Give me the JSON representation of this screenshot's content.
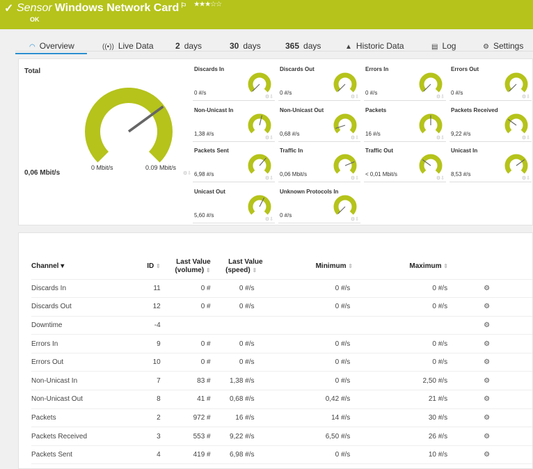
{
  "header": {
    "prefix": "Sensor",
    "title": "Windows Network Card",
    "rating": "★★★☆☆",
    "status": "OK",
    "color": "#b5c31b"
  },
  "tabs": [
    {
      "label": "Overview",
      "icon": "gauge-icon"
    },
    {
      "label": "Live Data",
      "icon": "broadcast-icon"
    },
    {
      "num": "2",
      "label": "days"
    },
    {
      "num": "30",
      "label": "days"
    },
    {
      "num": "365",
      "label": "days"
    },
    {
      "label": "Historic Data",
      "icon": "chart-icon"
    },
    {
      "label": "Log",
      "icon": "log-icon"
    },
    {
      "label": "Settings",
      "icon": "gear-icon"
    }
  ],
  "total": {
    "label": "Total",
    "value": "0,06 Mbit/s",
    "min": "0 Mbit/s",
    "max": "0.09 Mbit/s",
    "gauge_level": 0.7
  },
  "gauges": [
    {
      "name": "Discards In",
      "value": "0 #/s",
      "gauge_level": 0
    },
    {
      "name": "Discards Out",
      "value": "0 #/s",
      "gauge_level": 0
    },
    {
      "name": "Errors In",
      "value": "0 #/s",
      "gauge_level": 0
    },
    {
      "name": "Errors Out",
      "value": "0 #/s",
      "gauge_level": 0
    },
    {
      "name": "Non-Unicast In",
      "value": "1,38 #/s",
      "gauge_level": 0.55
    },
    {
      "name": "Non-Unicast Out",
      "value": "0,68 #/s",
      "gauge_level": 0.1
    },
    {
      "name": "Packets",
      "value": "16 #/s",
      "gauge_level": 0.5
    },
    {
      "name": "Packets Received",
      "value": "9,22 #/s",
      "gauge_level": 0.3
    },
    {
      "name": "Packets Sent",
      "value": "6,98 #/s",
      "gauge_level": 0.65
    },
    {
      "name": "Traffic In",
      "value": "0,06 Mbit/s",
      "gauge_level": 0.75
    },
    {
      "name": "Traffic Out",
      "value": "< 0,01 Mbit/s",
      "gauge_level": 0.3
    },
    {
      "name": "Unicast In",
      "value": "8,53 #/s",
      "gauge_level": 0.7
    },
    {
      "name": "Unicast Out",
      "value": "5,60 #/s",
      "gauge_level": 0.6
    },
    {
      "name": "Unknown Protocols In",
      "value": "0 #/s",
      "gauge_level": 0
    }
  ],
  "table": {
    "headers": {
      "channel": "Channel",
      "id": "ID",
      "vol": "Last Value",
      "vol2": "(volume)",
      "spd": "Last Value",
      "spd2": "(speed)",
      "min": "Minimum",
      "max": "Maximum"
    },
    "rows": [
      [
        "Discards In",
        "11",
        "0 #",
        "0 #/s",
        "0 #/s",
        "0 #/s"
      ],
      [
        "Discards Out",
        "12",
        "0 #",
        "0 #/s",
        "0 #/s",
        "0 #/s"
      ],
      [
        "Downtime",
        "-4",
        "",
        "",
        "",
        ""
      ],
      [
        "Errors In",
        "9",
        "0 #",
        "0 #/s",
        "0 #/s",
        "0 #/s"
      ],
      [
        "Errors Out",
        "10",
        "0 #",
        "0 #/s",
        "0 #/s",
        "0 #/s"
      ],
      [
        "Non-Unicast In",
        "7",
        "83 #",
        "1,38 #/s",
        "0 #/s",
        "2,50 #/s"
      ],
      [
        "Non-Unicast Out",
        "8",
        "41 #",
        "0,68 #/s",
        "0,42 #/s",
        "21 #/s"
      ],
      [
        "Packets",
        "2",
        "972 #",
        "16 #/s",
        "14 #/s",
        "30 #/s"
      ],
      [
        "Packets Received",
        "3",
        "553 #",
        "9,22 #/s",
        "6,50 #/s",
        "26 #/s"
      ],
      [
        "Packets Sent",
        "4",
        "419 #",
        "6,98 #/s",
        "0 #/s",
        "10 #/s"
      ]
    ]
  }
}
